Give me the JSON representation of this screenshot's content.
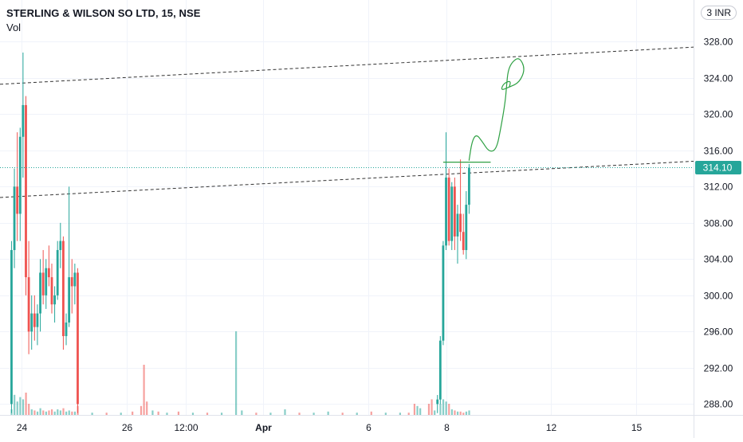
{
  "header": {
    "title": "STERLING & WILSON SO LTD, 15, NSE",
    "subtitle": "Vol",
    "currency": "3 INR"
  },
  "price_label": {
    "value": "314.10",
    "color": "#26a69a"
  },
  "colors": {
    "up": "#26a69a",
    "down": "#ef5350",
    "drawing": "#2ea043",
    "trendline": "#333333"
  },
  "chart_data": {
    "type": "candlestick",
    "y_ticks": [
      "328.00",
      "324.00",
      "320.00",
      "316.00",
      "312.00",
      "308.00",
      "304.00",
      "300.00",
      "296.00",
      "292.00",
      "288.00"
    ],
    "y_range": [
      286.8,
      332.6
    ],
    "x_ticks": [
      {
        "label": "24",
        "x": 0.1
      },
      {
        "label": "26",
        "x": 7.4
      },
      {
        "label": "12:00",
        "x": 11.5
      },
      {
        "label": "Apr",
        "x": 16.9
      },
      {
        "label": "6",
        "x": 24.2
      },
      {
        "label": "8",
        "x": 29.6
      },
      {
        "label": "12",
        "x": 36.9
      },
      {
        "label": "15",
        "x": 42.8
      }
    ],
    "x_range": [
      -1.4,
      46.8
    ],
    "last_price": 314.1,
    "candles": [
      {
        "x": -0.6,
        "o": 288.0,
        "h": 306.0,
        "l": 287.0,
        "c": 305.0
      },
      {
        "x": -0.4,
        "o": 305.0,
        "h": 314.0,
        "l": 303.0,
        "c": 312.0
      },
      {
        "x": -0.2,
        "o": 312.0,
        "h": 318.0,
        "l": 306.0,
        "c": 309.0
      },
      {
        "x": 0.0,
        "o": 309.0,
        "h": 318.5,
        "l": 306.0,
        "c": 317.5
      },
      {
        "x": 0.2,
        "o": 317.5,
        "h": 326.8,
        "l": 313.0,
        "c": 321.0
      },
      {
        "x": 0.4,
        "o": 321.0,
        "h": 322.0,
        "l": 300.0,
        "c": 302.0
      },
      {
        "x": 0.6,
        "o": 302.0,
        "h": 306.0,
        "l": 293.5,
        "c": 296.0
      },
      {
        "x": 0.8,
        "o": 296.0,
        "h": 300.0,
        "l": 294.0,
        "c": 298.0
      },
      {
        "x": 1.0,
        "o": 298.0,
        "h": 300.0,
        "l": 295.0,
        "c": 296.5
      },
      {
        "x": 1.2,
        "o": 296.5,
        "h": 299.0,
        "l": 294.5,
        "c": 298.0
      },
      {
        "x": 1.4,
        "o": 298.0,
        "h": 304.0,
        "l": 296.0,
        "c": 302.5
      },
      {
        "x": 1.6,
        "o": 302.5,
        "h": 305.0,
        "l": 299.0,
        "c": 300.0
      },
      {
        "x": 1.8,
        "o": 300.0,
        "h": 304.0,
        "l": 298.5,
        "c": 303.0
      },
      {
        "x": 2.0,
        "o": 303.0,
        "h": 305.5,
        "l": 301.0,
        "c": 302.0
      },
      {
        "x": 2.2,
        "o": 302.0,
        "h": 303.5,
        "l": 298.0,
        "c": 299.0
      },
      {
        "x": 2.4,
        "o": 299.0,
        "h": 301.0,
        "l": 297.0,
        "c": 300.0
      },
      {
        "x": 2.6,
        "o": 300.0,
        "h": 306.0,
        "l": 299.5,
        "c": 305.0
      },
      {
        "x": 2.8,
        "o": 305.0,
        "h": 308.0,
        "l": 303.0,
        "c": 306.0
      },
      {
        "x": 3.0,
        "o": 306.0,
        "h": 306.5,
        "l": 294.0,
        "c": 295.5
      },
      {
        "x": 3.2,
        "o": 295.5,
        "h": 298.0,
        "l": 294.5,
        "c": 297.0
      },
      {
        "x": 3.4,
        "o": 297.0,
        "h": 312.0,
        "l": 296.5,
        "c": 302.0
      },
      {
        "x": 3.6,
        "o": 302.0,
        "h": 304.0,
        "l": 298.0,
        "c": 301.0
      },
      {
        "x": 3.8,
        "o": 301.0,
        "h": 303.5,
        "l": 299.0,
        "c": 302.5
      },
      {
        "x": 4.0,
        "o": 302.5,
        "h": 303.0,
        "l": 287.0,
        "c": 288.0
      },
      {
        "x": 29.0,
        "o": 288.0,
        "h": 289.0,
        "l": 287.0,
        "c": 288.5
      },
      {
        "x": 29.2,
        "o": 288.5,
        "h": 295.5,
        "l": 288.0,
        "c": 295.0
      },
      {
        "x": 29.4,
        "o": 295.0,
        "h": 306.0,
        "l": 294.5,
        "c": 305.5
      },
      {
        "x": 29.6,
        "o": 305.5,
        "h": 318.0,
        "l": 305.0,
        "c": 313.0
      },
      {
        "x": 29.8,
        "o": 313.0,
        "h": 314.0,
        "l": 305.5,
        "c": 306.0
      },
      {
        "x": 30.0,
        "o": 306.0,
        "h": 312.5,
        "l": 305.0,
        "c": 312.0
      },
      {
        "x": 30.2,
        "o": 312.0,
        "h": 313.0,
        "l": 305.0,
        "c": 306.5
      },
      {
        "x": 30.4,
        "o": 306.5,
        "h": 310.0,
        "l": 303.5,
        "c": 309.0
      },
      {
        "x": 30.6,
        "o": 309.0,
        "h": 315.0,
        "l": 306.0,
        "c": 307.0
      },
      {
        "x": 30.8,
        "o": 307.0,
        "h": 309.0,
        "l": 304.5,
        "c": 305.0
      },
      {
        "x": 31.0,
        "o": 305.0,
        "h": 311.5,
        "l": 304.0,
        "c": 310.0
      },
      {
        "x": 31.2,
        "o": 310.0,
        "h": 314.5,
        "l": 309.0,
        "c": 314.1
      }
    ],
    "volume": [
      {
        "x": -0.6,
        "v": 0.05,
        "up": true
      },
      {
        "x": -0.4,
        "v": 0.18,
        "up": true
      },
      {
        "x": -0.2,
        "v": 0.12,
        "up": true
      },
      {
        "x": 0.0,
        "v": 0.16,
        "up": true
      },
      {
        "x": 0.2,
        "v": 0.14,
        "up": true
      },
      {
        "x": 0.4,
        "v": 0.2,
        "up": false
      },
      {
        "x": 0.6,
        "v": 0.1,
        "up": false
      },
      {
        "x": 0.8,
        "v": 0.05,
        "up": true
      },
      {
        "x": 1.0,
        "v": 0.04,
        "up": false
      },
      {
        "x": 1.2,
        "v": 0.03,
        "up": true
      },
      {
        "x": 1.4,
        "v": 0.06,
        "up": true
      },
      {
        "x": 1.6,
        "v": 0.04,
        "up": false
      },
      {
        "x": 1.8,
        "v": 0.03,
        "up": true
      },
      {
        "x": 2.0,
        "v": 0.04,
        "up": false
      },
      {
        "x": 2.2,
        "v": 0.05,
        "up": false
      },
      {
        "x": 2.4,
        "v": 0.03,
        "up": true
      },
      {
        "x": 2.6,
        "v": 0.05,
        "up": true
      },
      {
        "x": 2.8,
        "v": 0.04,
        "up": true
      },
      {
        "x": 3.0,
        "v": 0.06,
        "up": false
      },
      {
        "x": 3.2,
        "v": 0.03,
        "up": true
      },
      {
        "x": 3.4,
        "v": 0.04,
        "up": true
      },
      {
        "x": 3.6,
        "v": 0.03,
        "up": false
      },
      {
        "x": 3.8,
        "v": 0.03,
        "up": true
      },
      {
        "x": 4.0,
        "v": 0.08,
        "up": false
      },
      {
        "x": 5.0,
        "v": 0.02,
        "up": true
      },
      {
        "x": 6.0,
        "v": 0.02,
        "up": false
      },
      {
        "x": 7.0,
        "v": 0.02,
        "up": true
      },
      {
        "x": 7.8,
        "v": 0.03,
        "up": false
      },
      {
        "x": 8.4,
        "v": 0.08,
        "up": false
      },
      {
        "x": 8.6,
        "v": 0.45,
        "up": false
      },
      {
        "x": 8.8,
        "v": 0.12,
        "up": false
      },
      {
        "x": 9.2,
        "v": 0.04,
        "up": true
      },
      {
        "x": 9.6,
        "v": 0.03,
        "up": false
      },
      {
        "x": 10.2,
        "v": 0.02,
        "up": true
      },
      {
        "x": 11.0,
        "v": 0.03,
        "up": false
      },
      {
        "x": 12.0,
        "v": 0.02,
        "up": true
      },
      {
        "x": 13.0,
        "v": 0.02,
        "up": false
      },
      {
        "x": 14.0,
        "v": 0.02,
        "up": true
      },
      {
        "x": 15.0,
        "v": 0.75,
        "up": true
      },
      {
        "x": 15.4,
        "v": 0.04,
        "up": true
      },
      {
        "x": 16.4,
        "v": 0.02,
        "up": false
      },
      {
        "x": 17.4,
        "v": 0.02,
        "up": true
      },
      {
        "x": 18.4,
        "v": 0.05,
        "up": true
      },
      {
        "x": 19.4,
        "v": 0.02,
        "up": false
      },
      {
        "x": 20.4,
        "v": 0.02,
        "up": true
      },
      {
        "x": 21.4,
        "v": 0.03,
        "up": true
      },
      {
        "x": 22.4,
        "v": 0.02,
        "up": false
      },
      {
        "x": 23.4,
        "v": 0.02,
        "up": true
      },
      {
        "x": 24.4,
        "v": 0.03,
        "up": false
      },
      {
        "x": 25.4,
        "v": 0.02,
        "up": true
      },
      {
        "x": 26.4,
        "v": 0.02,
        "up": true
      },
      {
        "x": 27.0,
        "v": 0.02,
        "up": false
      },
      {
        "x": 27.4,
        "v": 0.1,
        "up": false
      },
      {
        "x": 27.6,
        "v": 0.08,
        "up": true
      },
      {
        "x": 27.8,
        "v": 0.06,
        "up": true
      },
      {
        "x": 28.4,
        "v": 0.1,
        "up": false
      },
      {
        "x": 28.6,
        "v": 0.14,
        "up": false
      },
      {
        "x": 28.8,
        "v": 0.04,
        "up": true
      },
      {
        "x": 29.2,
        "v": 0.1,
        "up": true
      },
      {
        "x": 29.4,
        "v": 0.14,
        "up": true
      },
      {
        "x": 29.6,
        "v": 0.12,
        "up": true
      },
      {
        "x": 29.8,
        "v": 0.1,
        "up": false
      },
      {
        "x": 30.0,
        "v": 0.05,
        "up": true
      },
      {
        "x": 30.2,
        "v": 0.04,
        "up": false
      },
      {
        "x": 30.4,
        "v": 0.03,
        "up": true
      },
      {
        "x": 30.6,
        "v": 0.03,
        "up": false
      },
      {
        "x": 30.8,
        "v": 0.02,
        "up": false
      },
      {
        "x": 31.0,
        "v": 0.03,
        "up": true
      },
      {
        "x": 31.2,
        "v": 0.04,
        "up": true
      }
    ],
    "trendlines": [
      {
        "x1": -1.4,
        "y1": 323.3,
        "x2": 46.8,
        "y2": 327.4
      },
      {
        "x1": -1.4,
        "y1": 310.8,
        "x2": 46.8,
        "y2": 314.8
      }
    ],
    "drawings": {
      "horizontal_segment": {
        "x1": 29.4,
        "x2": 32.7,
        "y": 314.7
      },
      "freehand": [
        [
          31.2,
          314.9
        ],
        [
          31.4,
          317.0
        ],
        [
          31.7,
          317.8
        ],
        [
          32.1,
          317.0
        ],
        [
          32.6,
          315.8
        ],
        [
          33.1,
          316.1
        ],
        [
          33.4,
          318.4
        ],
        [
          33.7,
          321.2
        ],
        [
          33.8,
          323.1
        ],
        [
          33.9,
          324.8
        ],
        [
          34.2,
          325.8
        ],
        [
          34.7,
          326.3
        ],
        [
          35.1,
          325.0
        ],
        [
          34.7,
          323.5
        ],
        [
          34.0,
          323.0
        ],
        [
          33.4,
          322.6
        ],
        [
          33.6,
          323.4
        ],
        [
          34.1,
          323.7
        ],
        [
          34.0,
          323.0
        ]
      ]
    }
  }
}
